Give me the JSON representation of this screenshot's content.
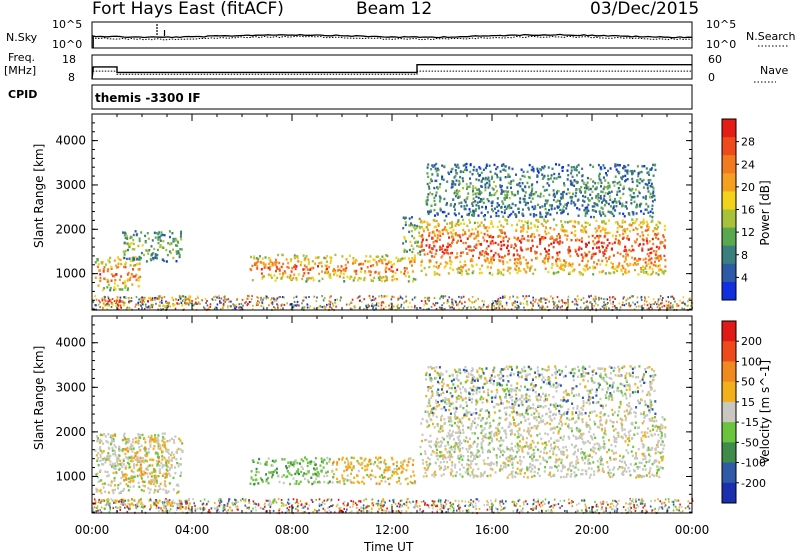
{
  "header": {
    "station": "Fort Hays East (fitACF)",
    "beam": "Beam 12",
    "date": "03/Dec/2015"
  },
  "strip": {
    "nsky_label": "N.Sky",
    "nsearch_label": "N.Search",
    "noise_ticks_left": [
      "10^5",
      "10^0"
    ],
    "noise_ticks_right": [
      "10^5",
      "10^0"
    ],
    "freq_label": "Freq.",
    "freq_unit": "[MHz]",
    "freq_ticks": [
      "18",
      "8"
    ],
    "nave_label": "Nave",
    "nave_ticks": [
      "60",
      "0"
    ],
    "cpid_label": "CPID",
    "cpid_value": "themis -3300 IF"
  },
  "chart_data": [
    {
      "type": "heatmap",
      "name": "power-panel",
      "ylabel": "Slant Range [km]",
      "ylim": [
        180,
        4600
      ],
      "yticks": [
        1000,
        2000,
        3000,
        4000
      ],
      "xlim_hours": [
        0,
        24
      ],
      "colorbar_label": "Power [dB]",
      "colorbar_ticks": [
        "4",
        "8",
        "12",
        "16",
        "20",
        "24",
        "28"
      ],
      "colorbar_colors": [
        "#1030e0",
        "#2d5aa6",
        "#3a7f7d",
        "#5aa84e",
        "#a7c13a",
        "#f2d21a",
        "#f6a021",
        "#f27b22",
        "#ee4a1c",
        "#e41d17"
      ],
      "regions": [
        {
          "t0": 0.1,
          "t1": 1.9,
          "r0": 650,
          "r1": 1400,
          "level": 0.75
        },
        {
          "t0": 1.2,
          "t1": 3.6,
          "r0": 1300,
          "r1": 2000,
          "level": 0.35
        },
        {
          "t0": 0.4,
          "t1": 4.0,
          "r0": 300,
          "r1": 520,
          "level": 0.8
        },
        {
          "t0": 6.3,
          "t1": 12.9,
          "r0": 850,
          "r1": 1450,
          "level": 0.75
        },
        {
          "t0": 12.4,
          "t1": 13.1,
          "r0": 1450,
          "r1": 2300,
          "level": 0.4
        },
        {
          "t0": 13.1,
          "t1": 22.9,
          "r0": 1000,
          "r1": 2250,
          "level": 0.85
        },
        {
          "t0": 13.3,
          "t1": 22.5,
          "r0": 2300,
          "r1": 3500,
          "level": 0.25
        }
      ]
    },
    {
      "type": "heatmap",
      "name": "velocity-panel",
      "ylabel": "Slant Range [km]",
      "ylim": [
        180,
        4600
      ],
      "yticks": [
        1000,
        2000,
        3000,
        4000
      ],
      "xlim_hours": [
        0,
        24
      ],
      "xticks": [
        "00:00",
        "04:00",
        "08:00",
        "12:00",
        "16:00",
        "20:00",
        "00:00"
      ],
      "xlabel": "Time UT",
      "colorbar_label": "Velocity [m s^-1]",
      "colorbar_ticks": [
        "200",
        "100",
        "50",
        "15",
        "-15",
        "-50",
        "-100",
        "-200"
      ],
      "colorbar_colors": [
        "#1a2fb0",
        "#2e5aa8",
        "#3f8b4a",
        "#6bc43d",
        "#c8c8c0",
        "#f2b01c",
        "#f08a1e",
        "#ee4a1c",
        "#e21a17"
      ],
      "regions": [
        {
          "t0": 0.1,
          "t1": 3.6,
          "r0": 650,
          "r1": 2000,
          "level": "gray"
        },
        {
          "t0": 1.2,
          "t1": 3.0,
          "r0": 900,
          "r1": 1900,
          "level": "orange"
        },
        {
          "t0": 0.4,
          "t1": 4.0,
          "r0": 300,
          "r1": 520,
          "level": "orange"
        },
        {
          "t0": 6.3,
          "t1": 9.5,
          "r0": 850,
          "r1": 1450,
          "level": "green"
        },
        {
          "t0": 9.5,
          "t1": 12.9,
          "r0": 850,
          "r1": 1450,
          "level": "orange"
        },
        {
          "t0": 13.1,
          "t1": 22.9,
          "r0": 1000,
          "r1": 2400,
          "level": "gray"
        },
        {
          "t0": 13.3,
          "t1": 22.5,
          "r0": 2400,
          "r1": 3500,
          "level": "gray-sparse"
        }
      ]
    }
  ]
}
